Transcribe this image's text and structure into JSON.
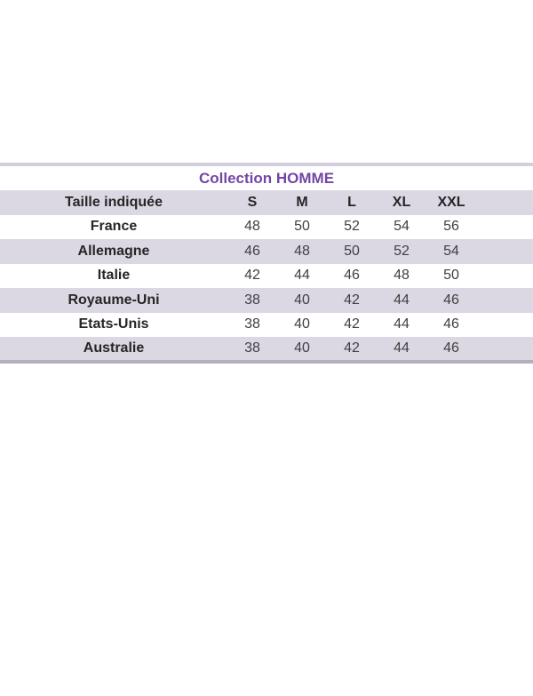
{
  "table": {
    "title": "Collection HOMME",
    "header": {
      "label": "Taille indiquée",
      "sizes": [
        "S",
        "M",
        "L",
        "XL",
        "XXL"
      ]
    },
    "rows": [
      {
        "country": "France",
        "values": [
          "48",
          "50",
          "52",
          "54",
          "56"
        ]
      },
      {
        "country": "Allemagne",
        "values": [
          "46",
          "48",
          "50",
          "52",
          "54"
        ]
      },
      {
        "country": "Italie",
        "values": [
          "42",
          "44",
          "46",
          "48",
          "50"
        ]
      },
      {
        "country": "Royaume-Uni",
        "values": [
          "38",
          "40",
          "42",
          "44",
          "46"
        ]
      },
      {
        "country": "Etats-Unis",
        "values": [
          "38",
          "40",
          "42",
          "44",
          "46"
        ]
      },
      {
        "country": "Australie",
        "values": [
          "38",
          "40",
          "42",
          "44",
          "46"
        ]
      }
    ],
    "colors": {
      "title_text": "#7346A5",
      "band_lavender": "#DBD7E3",
      "border_top": "#D4CFDE",
      "border_bottom": "#B3AFBC",
      "label_text": "#262626",
      "value_text": "#404040",
      "page_background": "#ffffff"
    }
  },
  "chart_data": {
    "type": "table",
    "title": "Collection HOMME",
    "columns": [
      "Taille indiquée",
      "S",
      "M",
      "L",
      "XL",
      "XXL"
    ],
    "rows": [
      [
        "France",
        48,
        50,
        52,
        54,
        56
      ],
      [
        "Allemagne",
        46,
        48,
        50,
        52,
        54
      ],
      [
        "Italie",
        42,
        44,
        46,
        48,
        50
      ],
      [
        "Royaume-Uni",
        38,
        40,
        42,
        44,
        46
      ],
      [
        "Etats-Unis",
        38,
        40,
        42,
        44,
        46
      ],
      [
        "Australie",
        38,
        40,
        42,
        44,
        46
      ]
    ],
    "layout_hints": {
      "zebra_striping": true,
      "title_position": "top-center",
      "empty_right_gutter": true
    }
  }
}
